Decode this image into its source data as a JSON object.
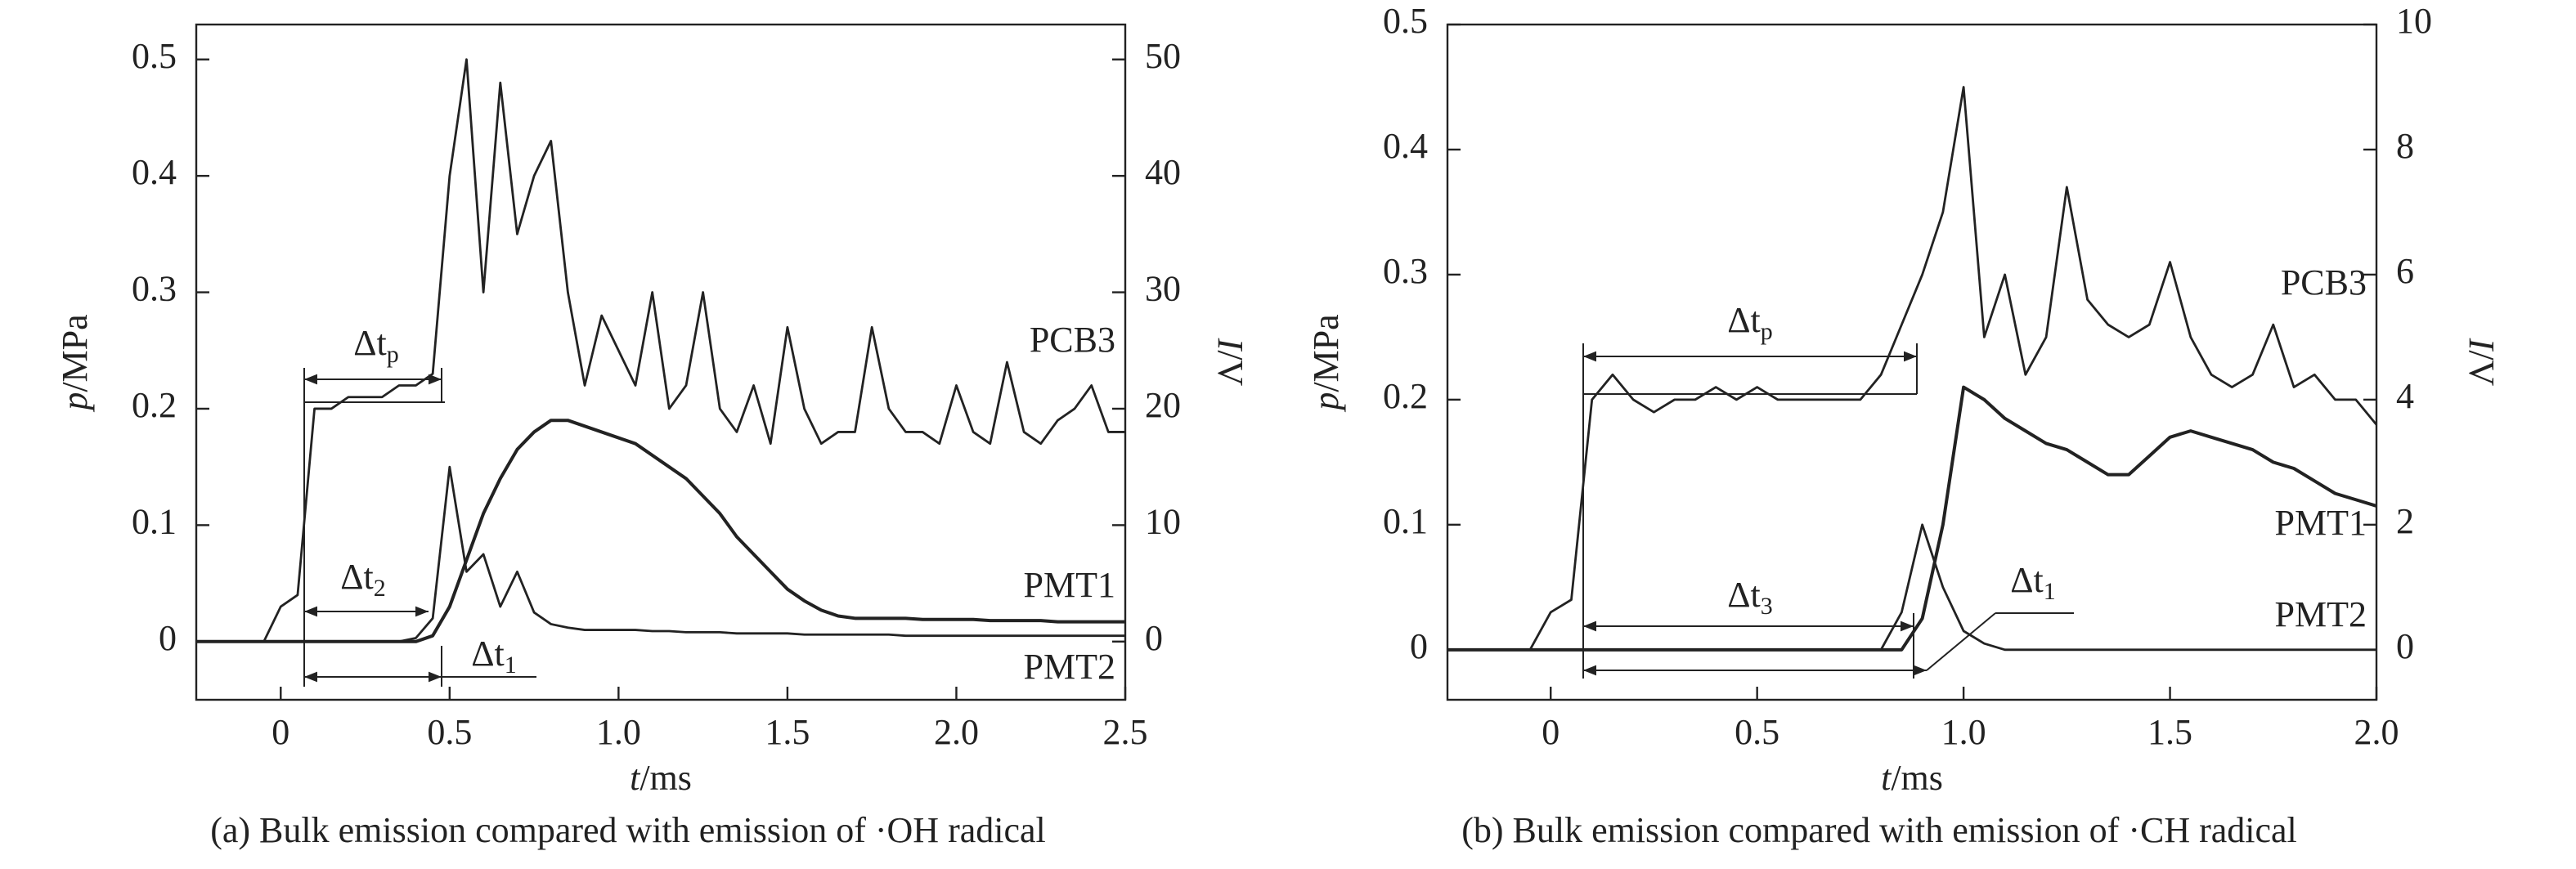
{
  "chart_data": [
    {
      "type": "line",
      "caption": "(a) Bulk emission compared with emission of ·OH radical",
      "xlabel": [
        "t",
        "/ms"
      ],
      "ylabel": [
        "p",
        "/MPa"
      ],
      "y2label": [
        "I",
        "/V"
      ],
      "xlim": [
        -0.25,
        2.5
      ],
      "xticks": [
        0,
        0.5,
        {
          "value": 1,
          "label": "1.0"
        },
        1.5,
        {
          "value": 2,
          "label": "2.0"
        },
        2.5
      ],
      "ylim": [
        -0.05,
        0.53
      ],
      "yticks": [
        0,
        0.1,
        0.2,
        0.3,
        0.4,
        0.5
      ],
      "y2lim": [
        -5,
        53
      ],
      "y2ticks": [
        0,
        10,
        20,
        30,
        40,
        50
      ],
      "x": [
        -0.25,
        -0.2,
        -0.15,
        -0.1,
        -0.05,
        0,
        0.05,
        0.1,
        0.15,
        0.2,
        0.25,
        0.3,
        0.35,
        0.4,
        0.45,
        0.5,
        0.55,
        0.6,
        0.65,
        0.7,
        0.75,
        0.8,
        0.85,
        0.9,
        0.95,
        1.0,
        1.05,
        1.1,
        1.15,
        1.2,
        1.25,
        1.3,
        1.35,
        1.4,
        1.45,
        1.5,
        1.55,
        1.6,
        1.65,
        1.7,
        1.75,
        1.8,
        1.85,
        1.9,
        1.95,
        2.0,
        2.05,
        2.1,
        2.15,
        2.2,
        2.25,
        2.3,
        2.35,
        2.4,
        2.45,
        2.5
      ],
      "series": [
        {
          "name": "PCB3",
          "color": "#222222",
          "values": [
            0,
            0,
            0,
            0,
            0,
            0.03,
            0.04,
            0.2,
            0.2,
            0.21,
            0.21,
            0.21,
            0.22,
            0.22,
            0.23,
            0.4,
            0.5,
            0.3,
            0.48,
            0.35,
            0.4,
            0.43,
            0.3,
            0.22,
            0.28,
            0.25,
            0.22,
            0.3,
            0.2,
            0.22,
            0.3,
            0.2,
            0.18,
            0.22,
            0.17,
            0.27,
            0.2,
            0.17,
            0.18,
            0.18,
            0.27,
            0.2,
            0.18,
            0.18,
            0.17,
            0.22,
            0.18,
            0.17,
            0.24,
            0.18,
            0.17,
            0.19,
            0.2,
            0.22,
            0.18,
            0.18
          ]
        },
        {
          "name": "PMT1",
          "color": "#222222",
          "axis": "y2",
          "values": [
            0,
            0,
            0,
            0,
            0,
            0,
            0,
            0,
            0,
            0,
            0,
            0,
            0,
            0,
            0.5,
            3,
            7,
            11,
            14,
            16.5,
            18,
            19,
            19,
            18.5,
            18,
            17.5,
            17,
            16,
            15,
            14,
            12.5,
            11,
            9,
            7.5,
            6,
            4.5,
            3.5,
            2.7,
            2.2,
            2,
            2,
            2,
            2,
            1.9,
            1.9,
            1.9,
            1.9,
            1.8,
            1.8,
            1.8,
            1.8,
            1.7,
            1.7,
            1.7,
            1.7,
            1.7
          ]
        },
        {
          "name": "PMT2",
          "color": "#222222",
          "axis": "y2",
          "values": [
            0,
            0,
            0,
            0,
            0,
            0,
            0,
            0,
            0,
            0,
            0,
            0,
            0,
            0.3,
            2,
            15,
            6,
            7.5,
            3,
            6,
            2.5,
            1.5,
            1.2,
            1,
            1,
            1,
            1,
            0.9,
            0.9,
            0.8,
            0.8,
            0.8,
            0.7,
            0.7,
            0.7,
            0.7,
            0.6,
            0.6,
            0.6,
            0.6,
            0.6,
            0.6,
            0.5,
            0.5,
            0.5,
            0.5,
            0.5,
            0.5,
            0.5,
            0.5,
            0.5,
            0.5,
            0.5,
            0.5,
            0.5,
            0.5
          ]
        }
      ],
      "annotations": [
        {
          "text": "Δt",
          "sub": "p"
        },
        {
          "text": "Δt",
          "sub": "2"
        },
        {
          "text": "Δt",
          "sub": "1"
        }
      ]
    },
    {
      "type": "line",
      "caption": "(b) Bulk emission compared with emission of ·CH radical",
      "xlabel": [
        "t",
        "/ms"
      ],
      "ylabel": [
        "p",
        "/MPa"
      ],
      "y2label": [
        "I",
        "/V"
      ],
      "xlim": [
        -0.25,
        2.0
      ],
      "xticks": [
        0,
        0.5,
        {
          "value": 1,
          "label": "1.0"
        },
        1.5,
        {
          "value": 2,
          "label": "2.0"
        }
      ],
      "ylim": [
        -0.04,
        0.5
      ],
      "yticks": [
        0,
        0.1,
        0.2,
        0.3,
        0.4,
        0.5
      ],
      "y2lim": [
        -0.8,
        10
      ],
      "y2ticks": [
        0,
        2,
        4,
        6,
        8,
        10
      ],
      "x": [
        -0.25,
        -0.2,
        -0.15,
        -0.1,
        -0.05,
        0,
        0.05,
        0.1,
        0.15,
        0.2,
        0.25,
        0.3,
        0.35,
        0.4,
        0.45,
        0.5,
        0.55,
        0.6,
        0.65,
        0.7,
        0.75,
        0.8,
        0.85,
        0.9,
        0.95,
        1.0,
        1.05,
        1.1,
        1.15,
        1.2,
        1.25,
        1.3,
        1.35,
        1.4,
        1.45,
        1.5,
        1.55,
        1.6,
        1.65,
        1.7,
        1.75,
        1.8,
        1.85,
        1.9,
        1.95,
        2.0
      ],
      "series": [
        {
          "name": "PCB3",
          "color": "#222222",
          "values": [
            0,
            0,
            0,
            0,
            0,
            0.03,
            0.04,
            0.2,
            0.22,
            0.2,
            0.19,
            0.2,
            0.2,
            0.21,
            0.2,
            0.21,
            0.2,
            0.2,
            0.2,
            0.2,
            0.2,
            0.22,
            0.26,
            0.3,
            0.35,
            0.45,
            0.25,
            0.3,
            0.22,
            0.25,
            0.37,
            0.28,
            0.26,
            0.25,
            0.26,
            0.31,
            0.25,
            0.22,
            0.21,
            0.22,
            0.26,
            0.21,
            0.22,
            0.2,
            0.2,
            0.18
          ]
        },
        {
          "name": "PMT1",
          "color": "#222222",
          "axis": "y2",
          "values": [
            0,
            0,
            0,
            0,
            0,
            0,
            0,
            0,
            0,
            0,
            0,
            0,
            0,
            0,
            0,
            0,
            0,
            0,
            0,
            0,
            0,
            0,
            0,
            0.5,
            2,
            4.2,
            4,
            3.7,
            3.5,
            3.3,
            3.2,
            3,
            2.8,
            2.8,
            3.1,
            3.4,
            3.5,
            3.4,
            3.3,
            3.2,
            3,
            2.9,
            2.7,
            2.5,
            2.4,
            2.3
          ]
        },
        {
          "name": "PMT2",
          "color": "#222222",
          "axis": "y2",
          "values": [
            0,
            0,
            0,
            0,
            0,
            0,
            0,
            0,
            0,
            0,
            0,
            0,
            0,
            0,
            0,
            0,
            0,
            0,
            0,
            0,
            0,
            0,
            0.6,
            2,
            1,
            0.3,
            0.1,
            0,
            0,
            0,
            0,
            0,
            0,
            0,
            0,
            0,
            0,
            0,
            0,
            0,
            0,
            0,
            0,
            0,
            0,
            0
          ]
        }
      ],
      "annotations": [
        {
          "text": "Δt",
          "sub": "p"
        },
        {
          "text": "Δt",
          "sub": "3"
        },
        {
          "text": "Δt",
          "sub": "1"
        }
      ]
    }
  ]
}
